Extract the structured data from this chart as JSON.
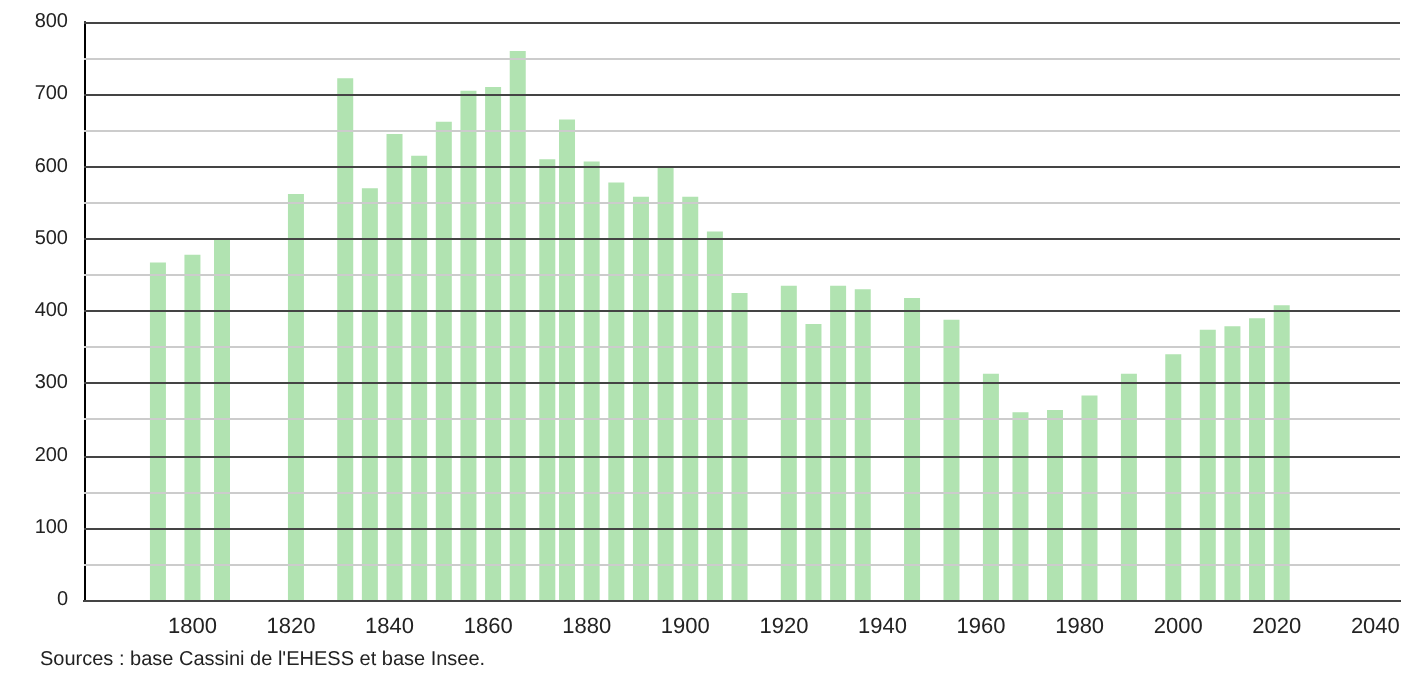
{
  "chart_data": {
    "type": "bar",
    "x": [
      1793,
      1800,
      1806,
      1821,
      1831,
      1836,
      1841,
      1846,
      1851,
      1856,
      1861,
      1866,
      1872,
      1876,
      1881,
      1886,
      1891,
      1896,
      1901,
      1906,
      1911,
      1921,
      1926,
      1931,
      1936,
      1946,
      1954,
      1962,
      1968,
      1975,
      1982,
      1990,
      1999,
      2006,
      2011,
      2016,
      2021
    ],
    "values": [
      467,
      478,
      500,
      562,
      722,
      570,
      645,
      615,
      662,
      705,
      710,
      760,
      610,
      665,
      607,
      578,
      558,
      600,
      558,
      510,
      425,
      435,
      382,
      435,
      430,
      418,
      388,
      313,
      260,
      263,
      283,
      313,
      340,
      374,
      379,
      390,
      408
    ],
    "color": "#b1e3b1",
    "xlim": [
      1778,
      2045
    ],
    "xticks": [
      1800,
      1820,
      1840,
      1860,
      1880,
      1900,
      1920,
      1940,
      1960,
      1980,
      2000,
      2020,
      2040
    ],
    "ylim": [
      0,
      800
    ],
    "yticks": [
      0,
      {
        "value": 50,
        "label": null
      },
      100,
      {
        "value": 150,
        "label": null
      },
      200,
      {
        "value": 250,
        "label": null
      },
      300,
      {
        "value": 350,
        "label": null
      },
      400,
      {
        "value": 450,
        "label": null
      },
      500,
      {
        "value": 550,
        "label": null
      },
      600,
      {
        "value": 650,
        "label": null
      },
      700,
      {
        "value": 750,
        "label": null
      },
      800
    ],
    "grid": "y",
    "annotations": [
      "Sources : base Cassini de l'EHESS et base Insee."
    ]
  }
}
